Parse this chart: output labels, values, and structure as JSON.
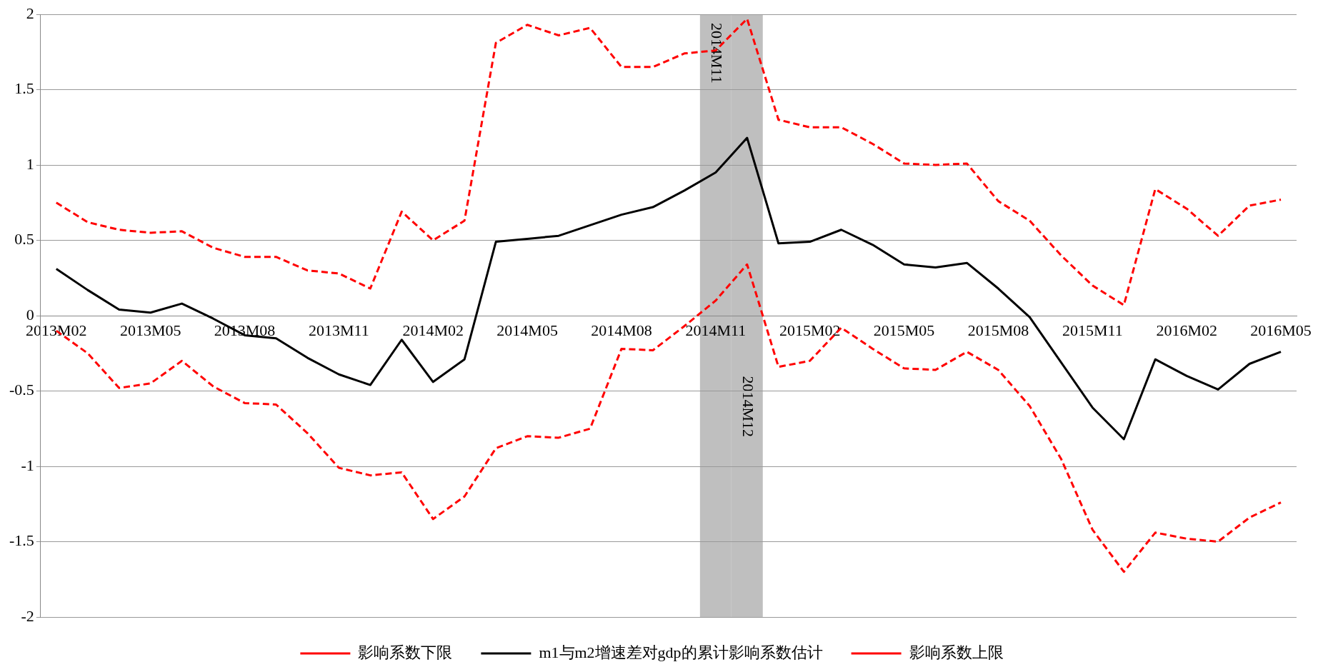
{
  "chart_data": {
    "type": "line",
    "x": [
      "2013-02",
      "2013-03",
      "2013-04",
      "2013-05",
      "2013-06",
      "2013-07",
      "2013-08",
      "2013-09",
      "2013-10",
      "2013-11",
      "2013-12",
      "2014-01",
      "2014-02",
      "2014-03",
      "2014-04",
      "2014-05",
      "2014-06",
      "2014-07",
      "2014-08",
      "2014-09",
      "2014-10",
      "2014-11",
      "2014-12",
      "2015-01",
      "2015-02",
      "2015-03",
      "2015-04",
      "2015-05",
      "2015-06",
      "2015-07",
      "2015-08",
      "2015-09",
      "2015-10",
      "2015-11",
      "2015-12",
      "2016-01",
      "2016-02",
      "2016-03",
      "2016-04",
      "2016-05"
    ],
    "series": [
      {
        "name": "影响系数下限",
        "color": "#ff0000",
        "line_style": "dashed",
        "values": [
          -0.1,
          -0.25,
          -0.48,
          -0.45,
          -0.3,
          -0.47,
          -0.58,
          -0.59,
          -0.78,
          -1.01,
          -1.06,
          -1.04,
          -1.35,
          -1.2,
          -0.88,
          -0.8,
          -0.81,
          -0.75,
          -0.22,
          -0.23,
          -0.07,
          0.1,
          0.34,
          -0.34,
          -0.3,
          -0.08,
          -0.22,
          -0.35,
          -0.36,
          -0.24,
          -0.36,
          -0.6,
          -0.95,
          -1.42,
          -1.7,
          -1.44,
          -1.48,
          -1.5,
          -1.34,
          -1.24
        ]
      },
      {
        "name": "m1与m2增速差对gdp的累计影响系数估计",
        "color": "#000000",
        "line_style": "solid",
        "values": [
          0.31,
          0.17,
          0.04,
          0.02,
          0.08,
          -0.02,
          -0.13,
          -0.15,
          -0.28,
          -0.39,
          -0.46,
          -0.16,
          -0.44,
          -0.29,
          0.49,
          0.51,
          0.53,
          0.6,
          0.67,
          0.72,
          0.83,
          0.95,
          1.18,
          0.48,
          0.49,
          0.57,
          0.47,
          0.34,
          0.32,
          0.35,
          0.18,
          -0.01,
          -0.31,
          -0.61,
          -0.82,
          -0.29,
          -0.4,
          -0.49,
          -0.32,
          -0.24
        ]
      },
      {
        "name": "影响系数上限",
        "color": "#ff0000",
        "line_style": "dashed",
        "values": [
          0.75,
          0.62,
          0.57,
          0.55,
          0.56,
          0.45,
          0.39,
          0.39,
          0.3,
          0.28,
          0.18,
          0.69,
          0.5,
          0.63,
          1.81,
          1.93,
          1.86,
          1.91,
          1.65,
          1.65,
          1.74,
          1.76,
          1.97,
          1.3,
          1.25,
          1.25,
          1.14,
          1.01,
          1.0,
          1.01,
          0.76,
          0.63,
          0.4,
          0.2,
          0.07,
          0.84,
          0.71,
          0.53,
          0.73,
          0.77
        ]
      }
    ],
    "xlim": [
      "2013-01-16",
      "2016-05-16"
    ],
    "xticks": [
      {
        "value": "2013-02",
        "label": "2013M02"
      },
      {
        "value": "2013-05",
        "label": "2013M05"
      },
      {
        "value": "2013-08",
        "label": "2013M08"
      },
      {
        "value": "2013-11",
        "label": "2013M11"
      },
      {
        "value": "2014-02",
        "label": "2014M02"
      },
      {
        "value": "2014-05",
        "label": "2014M05"
      },
      {
        "value": "2014-08",
        "label": "2014M08"
      },
      {
        "value": "2014-11",
        "label": "2014M11"
      },
      {
        "value": "2015-02",
        "label": "2015M02"
      },
      {
        "value": "2015-05",
        "label": "2015M05"
      },
      {
        "value": "2015-08",
        "label": "2015M08"
      },
      {
        "value": "2015-11",
        "label": "2015M11"
      },
      {
        "value": "2016-02",
        "label": "2016M02"
      },
      {
        "value": "2016-05",
        "label": "2016M05"
      }
    ],
    "ylim": [
      -2,
      2
    ],
    "yticks": [
      -2,
      -1.5,
      -1,
      -0.5,
      0,
      0.5,
      1,
      1.5,
      2
    ],
    "bands": [
      {
        "axis": "x",
        "from": "2014-10-16",
        "to": "2014-11-16",
        "label": "2014M11",
        "color": "#bfbfbf"
      },
      {
        "axis": "x",
        "from": "2014-11-16",
        "to": "2014-12-16",
        "label": "2014M12",
        "color": "#bfbfbf"
      }
    ],
    "grid": "y",
    "legend": "bottom",
    "marker": "none"
  }
}
